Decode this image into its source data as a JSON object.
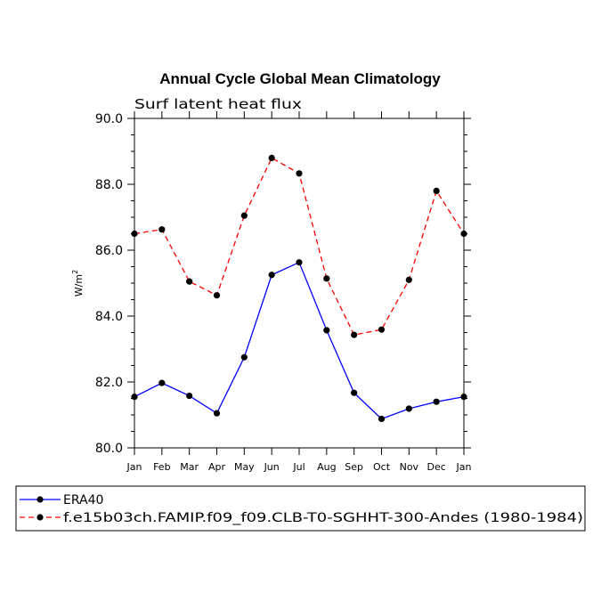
{
  "chart_data": {
    "type": "line",
    "title": "Annual Cycle Global Mean Climatology",
    "subtitle": "Surf latent heat flux",
    "xlabel": "",
    "ylabel": "W/m",
    "ylabel_superscript": "2",
    "ylim": [
      80.0,
      90.0
    ],
    "ytick_labels": [
      "80.0",
      "82.0",
      "84.0",
      "86.0",
      "88.0",
      "90.0"
    ],
    "categories": [
      "Jan",
      "Feb",
      "Mar",
      "Apr",
      "May",
      "Jun",
      "Jul",
      "Aug",
      "Sep",
      "Oct",
      "Nov",
      "Dec",
      "Jan"
    ],
    "series": [
      {
        "name": "ERA40",
        "color": "#0000ff",
        "dash": "solid",
        "values": [
          81.55,
          81.97,
          81.58,
          81.05,
          82.75,
          85.25,
          85.63,
          83.57,
          81.67,
          80.88,
          81.19,
          81.4,
          81.55
        ]
      },
      {
        "name": "f.e15b03ch.FAMIP.f09_f09.CLB-T0-SGHHT-300-Andes (1980-1984)",
        "color": "#ff0000",
        "dash": "dashed",
        "values": [
          86.5,
          86.63,
          85.05,
          84.63,
          87.05,
          88.8,
          88.33,
          85.14,
          83.43,
          83.59,
          85.1,
          87.8,
          86.5
        ]
      }
    ],
    "grid": false,
    "legend_position": "bottom"
  }
}
